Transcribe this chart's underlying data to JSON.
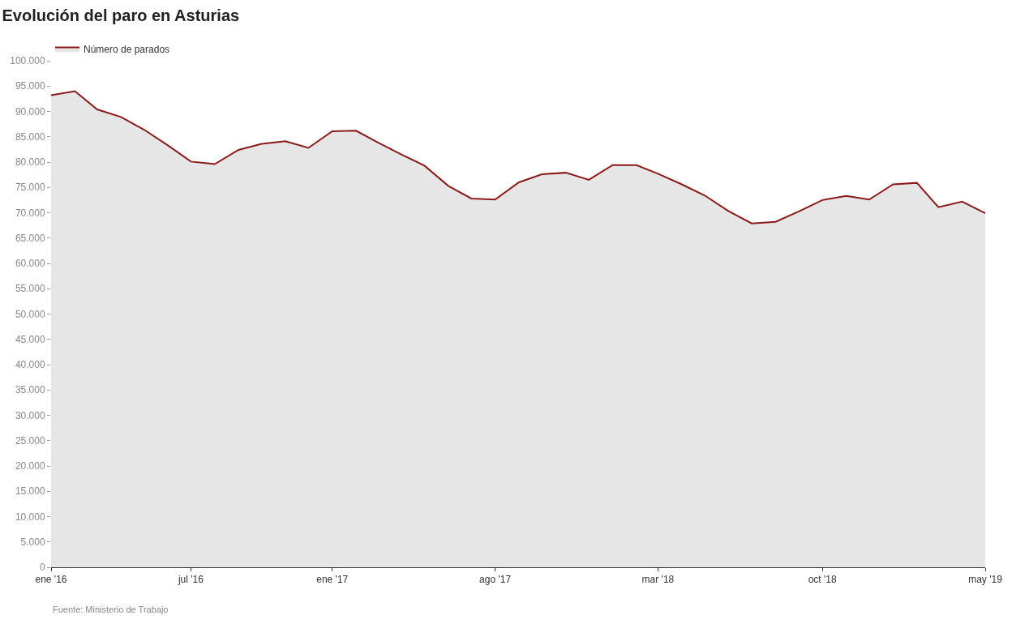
{
  "chart_data": {
    "type": "area",
    "title": "Evolución del paro en Asturias",
    "x": [
      "2016-01",
      "2016-02",
      "2016-03",
      "2016-04",
      "2016-05",
      "2016-06",
      "2016-07",
      "2016-08",
      "2016-09",
      "2016-10",
      "2016-11",
      "2016-12",
      "2017-01",
      "2017-02",
      "2017-03",
      "2017-04",
      "2017-05",
      "2017-06",
      "2017-07",
      "2017-08",
      "2017-09",
      "2017-10",
      "2017-11",
      "2017-12",
      "2018-01",
      "2018-02",
      "2018-03",
      "2018-04",
      "2018-05",
      "2018-06",
      "2018-07",
      "2018-08",
      "2018-09",
      "2018-10",
      "2018-11",
      "2018-12",
      "2019-01",
      "2019-02",
      "2019-03",
      "2019-04",
      "2019-05"
    ],
    "series": [
      {
        "name": "Número de parados",
        "color": "#8b1a1a",
        "values": [
          93200,
          94000,
          90400,
          88900,
          86400,
          83300,
          80100,
          79600,
          82400,
          83600,
          84100,
          82800,
          86100,
          86200,
          83900,
          81500,
          79300,
          75300,
          72800,
          72600,
          76000,
          77600,
          77900,
          76500,
          79400,
          79400,
          77700,
          75600,
          73400,
          70300,
          67900,
          68200,
          70300,
          72500,
          73300,
          72600,
          75600,
          75900,
          71100,
          72200,
          69900
        ]
      }
    ],
    "xlim": [
      "2016-01",
      "2019-05"
    ],
    "xticks": [
      {
        "value": "2016-01",
        "label": "ene '16"
      },
      {
        "value": "2016-07",
        "label": "jul '16"
      },
      {
        "value": "2017-01",
        "label": "ene '17"
      },
      {
        "value": "2017-08",
        "label": "ago '17"
      },
      {
        "value": "2018-03",
        "label": "mar '18"
      },
      {
        "value": "2018-10",
        "label": "oct '18"
      },
      {
        "value": "2019-05",
        "label": "may '19"
      }
    ],
    "ylim": [
      0,
      100000
    ],
    "yticks": [
      0,
      {
        "value": 5000,
        "label": "5.000"
      },
      {
        "value": 10000,
        "label": "10.000"
      },
      {
        "value": 15000,
        "label": "15.000"
      },
      {
        "value": 20000,
        "label": "20.000"
      },
      {
        "value": 25000,
        "label": "25.000"
      },
      {
        "value": 30000,
        "label": "30.000"
      },
      {
        "value": 35000,
        "label": "35.000"
      },
      {
        "value": 40000,
        "label": "40.000"
      },
      {
        "value": 45000,
        "label": "45.000"
      },
      {
        "value": 50000,
        "label": "50.000"
      },
      {
        "value": 55000,
        "label": "55.000"
      },
      {
        "value": 60000,
        "label": "60.000"
      },
      {
        "value": 65000,
        "label": "65.000"
      },
      {
        "value": 70000,
        "label": "70.000"
      },
      {
        "value": 75000,
        "label": "75.000"
      },
      {
        "value": 80000,
        "label": "80.000"
      },
      {
        "value": 85000,
        "label": "85.000"
      },
      {
        "value": 90000,
        "label": "90.000"
      },
      {
        "value": 95000,
        "label": "95.000"
      },
      {
        "value": 100000,
        "label": "100.000"
      }
    ],
    "grid": false,
    "legend": "top left",
    "marker": "none",
    "annotations": [
      "Fuente: Ministerio de Trabajo"
    ]
  }
}
